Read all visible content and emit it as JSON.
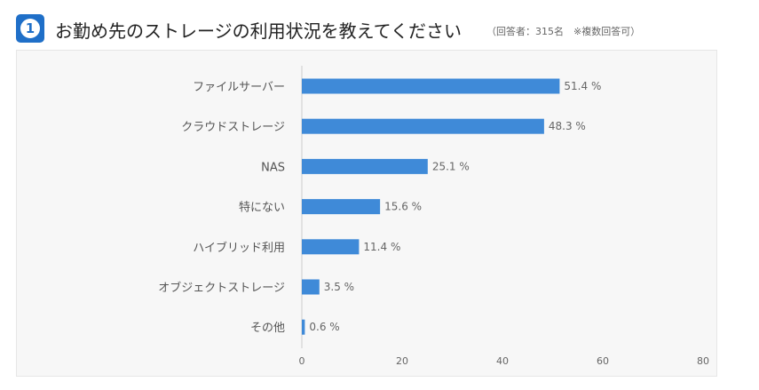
{
  "header": {
    "number": "1",
    "title": "お勤め先のストレージの利用状況を教えてください",
    "subtitle": "（回答者：315名　※複数回答可）"
  },
  "colors": {
    "bar": "#3f8ad8",
    "accent": "#1f6fc8"
  },
  "chart_data": {
    "type": "bar",
    "orientation": "horizontal",
    "title": "お勤め先のストレージの利用状況を教えてください",
    "categories": [
      "ファイルサーバー",
      "クラウドストレージ",
      "NAS",
      "特にない",
      "ハイブリッド利用",
      "オブジェクトストレージ",
      "その他"
    ],
    "values": [
      51.4,
      48.3,
      25.1,
      15.6,
      11.4,
      3.5,
      0.6
    ],
    "value_labels": [
      "51.4 %",
      "48.3 %",
      "25.1 %",
      "15.6 %",
      "11.4 %",
      "3.5 %",
      "0.6 %"
    ],
    "xlim": [
      0,
      80
    ],
    "xticks": [
      "0",
      "20",
      "40",
      "60",
      "80"
    ],
    "xlabel": "",
    "ylabel": "",
    "grid": false
  }
}
